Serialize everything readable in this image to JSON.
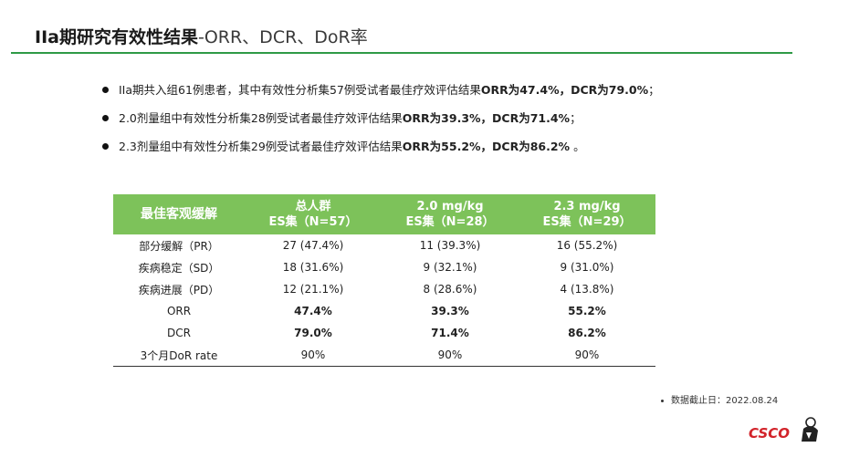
{
  "title": {
    "main": "IIa期研究有效性结果",
    "sub": "-ORR、DCR、DoR率"
  },
  "bullets": [
    {
      "prefix": "IIa期共入组61例患者，其中有效性分析集57例受试者最佳疗效评估结果",
      "bold": "ORR为47.4%，DCR为79.0%",
      "suffix": "；"
    },
    {
      "prefix": "2.0剂量组中有效性分析集28例受试者最佳疗效评估结果",
      "bold": "ORR为39.3%，DCR为71.4%",
      "suffix": "；"
    },
    {
      "prefix": "2.3剂量组中有效性分析集29例受试者最佳疗效评估结果",
      "bold": "ORR为55.2%，DCR为86.2%",
      "suffix": " 。"
    }
  ],
  "table": {
    "header": {
      "label": "最佳客观缓解",
      "col1": {
        "line1": "总人群",
        "line2": "ES集（N=57）"
      },
      "col2": {
        "line1": "2.0 mg/kg",
        "line2": "ES集（N=28）"
      },
      "col3": {
        "line1": "2.3 mg/kg",
        "line2": "ES集（N=29）"
      }
    },
    "rows": [
      {
        "label": "部分缓解（PR）",
        "c1": "27 (47.4%)",
        "c2": "11 (39.3%)",
        "c3": "16 (55.2%)",
        "bold": false
      },
      {
        "label": "疾病稳定（SD）",
        "c1": "18 (31.6%)",
        "c2": "9 (32.1%)",
        "c3": "9 (31.0%)",
        "bold": false
      },
      {
        "label": "疾病进展（PD）",
        "c1": "12 (21.1%)",
        "c2": "8 (28.6%)",
        "c3": "4 (13.8%)",
        "bold": false
      },
      {
        "label": "ORR",
        "c1": "47.4%",
        "c2": "39.3%",
        "c3": "55.2%",
        "bold": true
      },
      {
        "label": "DCR",
        "c1": "79.0%",
        "c2": "71.4%",
        "c3": "86.2%",
        "bold": true
      },
      {
        "label": "3个月DoR rate",
        "c1": "90%",
        "c2": "90%",
        "c3": "90%",
        "bold": false
      }
    ]
  },
  "footnote": "数据截止日：2022.08.24",
  "logo": {
    "text": "CSCO",
    "icon": "csco-mark-icon"
  },
  "colors": {
    "accent_green": "#2e9a46",
    "header_green": "#7dc25a",
    "logo_red": "#d2232a"
  }
}
